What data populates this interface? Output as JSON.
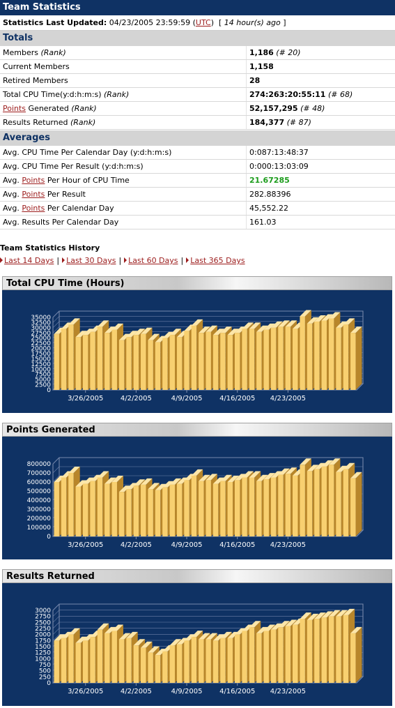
{
  "page_title": "Team Statistics",
  "last_updated": {
    "label": "Statistics Last Updated:",
    "datetime": "04/23/2005 23:59:59",
    "timezone": "UTC",
    "ago": "14 hour(s) ago"
  },
  "totals": {
    "heading": "Totals",
    "rows": [
      {
        "label": "Members",
        "rank_label": "(Rank)",
        "value": "1,186",
        "rank": "(# 20)"
      },
      {
        "label": "Current Members",
        "value": "1,158"
      },
      {
        "label": "Retired Members",
        "value": "28"
      },
      {
        "label": "Total CPU Time(y:d:h:m:s)",
        "rank_label": "(Rank)",
        "value": "274:263:20:55:11",
        "rank": "(# 68)"
      },
      {
        "link": "Points",
        "label": " Generated",
        "rank_label": "(Rank)",
        "value": "52,157,295",
        "rank": "(# 48)"
      },
      {
        "label": "Results Returned",
        "rank_label": "(Rank)",
        "value": "184,377",
        "rank": "(# 87)"
      }
    ]
  },
  "averages": {
    "heading": "Averages",
    "rows": [
      {
        "pre": "Avg. CPU Time Per Calendar Day (y:d:h:m:s)",
        "value": "0:087:13:48:37"
      },
      {
        "pre": "Avg. CPU Time Per Result (y:d:h:m:s)",
        "value": "0:000:13:03:09"
      },
      {
        "pre": "Avg. ",
        "link": "Points",
        "post": " Per Hour of CPU Time",
        "value": "21.67285"
      },
      {
        "pre": "Avg. ",
        "link": "Points",
        "post": " Per Result",
        "value": "282.88396"
      },
      {
        "pre": "Avg. ",
        "link": "Points",
        "post": " Per Calendar Day",
        "value": "45,552.22"
      },
      {
        "pre": "Avg. Results Per Calendar Day",
        "value": "161.03"
      }
    ]
  },
  "history": {
    "title": "Team Statistics History",
    "links": [
      "Last 14 Days",
      "Last 30 Days",
      "Last 60 Days",
      "Last 365 Days"
    ],
    "separator": "|"
  },
  "colors": {
    "header_bg": "#0f3264",
    "chart_bg": "#0f3264",
    "bar_front": "#f8d070",
    "link": "#9c1c1c",
    "highlight": "#1c9c1c"
  },
  "chart_data": [
    {
      "type": "bar",
      "title": "Total CPU Time (Hours)",
      "ylim": [
        0,
        35000
      ],
      "yticks": [
        0,
        2500,
        5000,
        7500,
        10000,
        12500,
        15000,
        17500,
        20000,
        22500,
        25000,
        27500,
        30000,
        32500,
        35000
      ],
      "xtick_labels": [
        "3/26/2005",
        "4/2/2005",
        "4/9/2005",
        "4/16/2005",
        "4/23/2005"
      ],
      "xtick_index": [
        4,
        11,
        18,
        25,
        32
      ],
      "values": [
        27000,
        29500,
        31500,
        25500,
        26500,
        28000,
        30500,
        27500,
        29000,
        24000,
        25500,
        26500,
        27000,
        24000,
        23000,
        25000,
        26500,
        25500,
        28500,
        31000,
        27500,
        28000,
        26500,
        27500,
        26500,
        27500,
        29500,
        29500,
        28000,
        29000,
        30000,
        30500,
        30500,
        29500,
        35500,
        32000,
        33000,
        33500,
        34500,
        30000,
        31500,
        27500
      ]
    },
    {
      "type": "bar",
      "title": "Points Generated",
      "ylim": [
        0,
        800000
      ],
      "yticks": [
        0,
        100000,
        200000,
        300000,
        400000,
        500000,
        600000,
        700000,
        800000
      ],
      "xtick_labels": [
        "3/26/2005",
        "4/2/2005",
        "4/9/2005",
        "4/16/2005",
        "4/23/2005"
      ],
      "xtick_index": [
        4,
        11,
        18,
        25,
        32
      ],
      "values": [
        600000,
        650000,
        700000,
        550000,
        580000,
        610000,
        650000,
        580000,
        600000,
        490000,
        520000,
        560000,
        570000,
        520000,
        510000,
        540000,
        570000,
        580000,
        620000,
        670000,
        610000,
        620000,
        580000,
        610000,
        600000,
        620000,
        650000,
        650000,
        610000,
        630000,
        650000,
        680000,
        690000,
        670000,
        790000,
        720000,
        740000,
        770000,
        790000,
        710000,
        740000,
        640000
      ]
    },
    {
      "type": "bar",
      "title": "Results Returned",
      "ylim": [
        0,
        3000
      ],
      "yticks": [
        0,
        250,
        500,
        750,
        1000,
        1250,
        1500,
        1750,
        2000,
        2250,
        2500,
        2750,
        3000
      ],
      "xtick_labels": [
        "3/26/2005",
        "4/2/2005",
        "4/9/2005",
        "4/16/2005",
        "4/23/2005"
      ],
      "xtick_index": [
        4,
        11,
        18,
        25,
        32
      ],
      "values": [
        1750,
        1850,
        2000,
        1650,
        1750,
        1900,
        2200,
        2050,
        2150,
        1800,
        1850,
        1550,
        1450,
        1250,
        1150,
        1300,
        1550,
        1600,
        1750,
        1900,
        1800,
        1800,
        1750,
        1850,
        1850,
        2000,
        2150,
        2300,
        2050,
        2150,
        2200,
        2300,
        2350,
        2400,
        2650,
        2600,
        2650,
        2700,
        2750,
        2750,
        2800,
        2050
      ]
    }
  ]
}
